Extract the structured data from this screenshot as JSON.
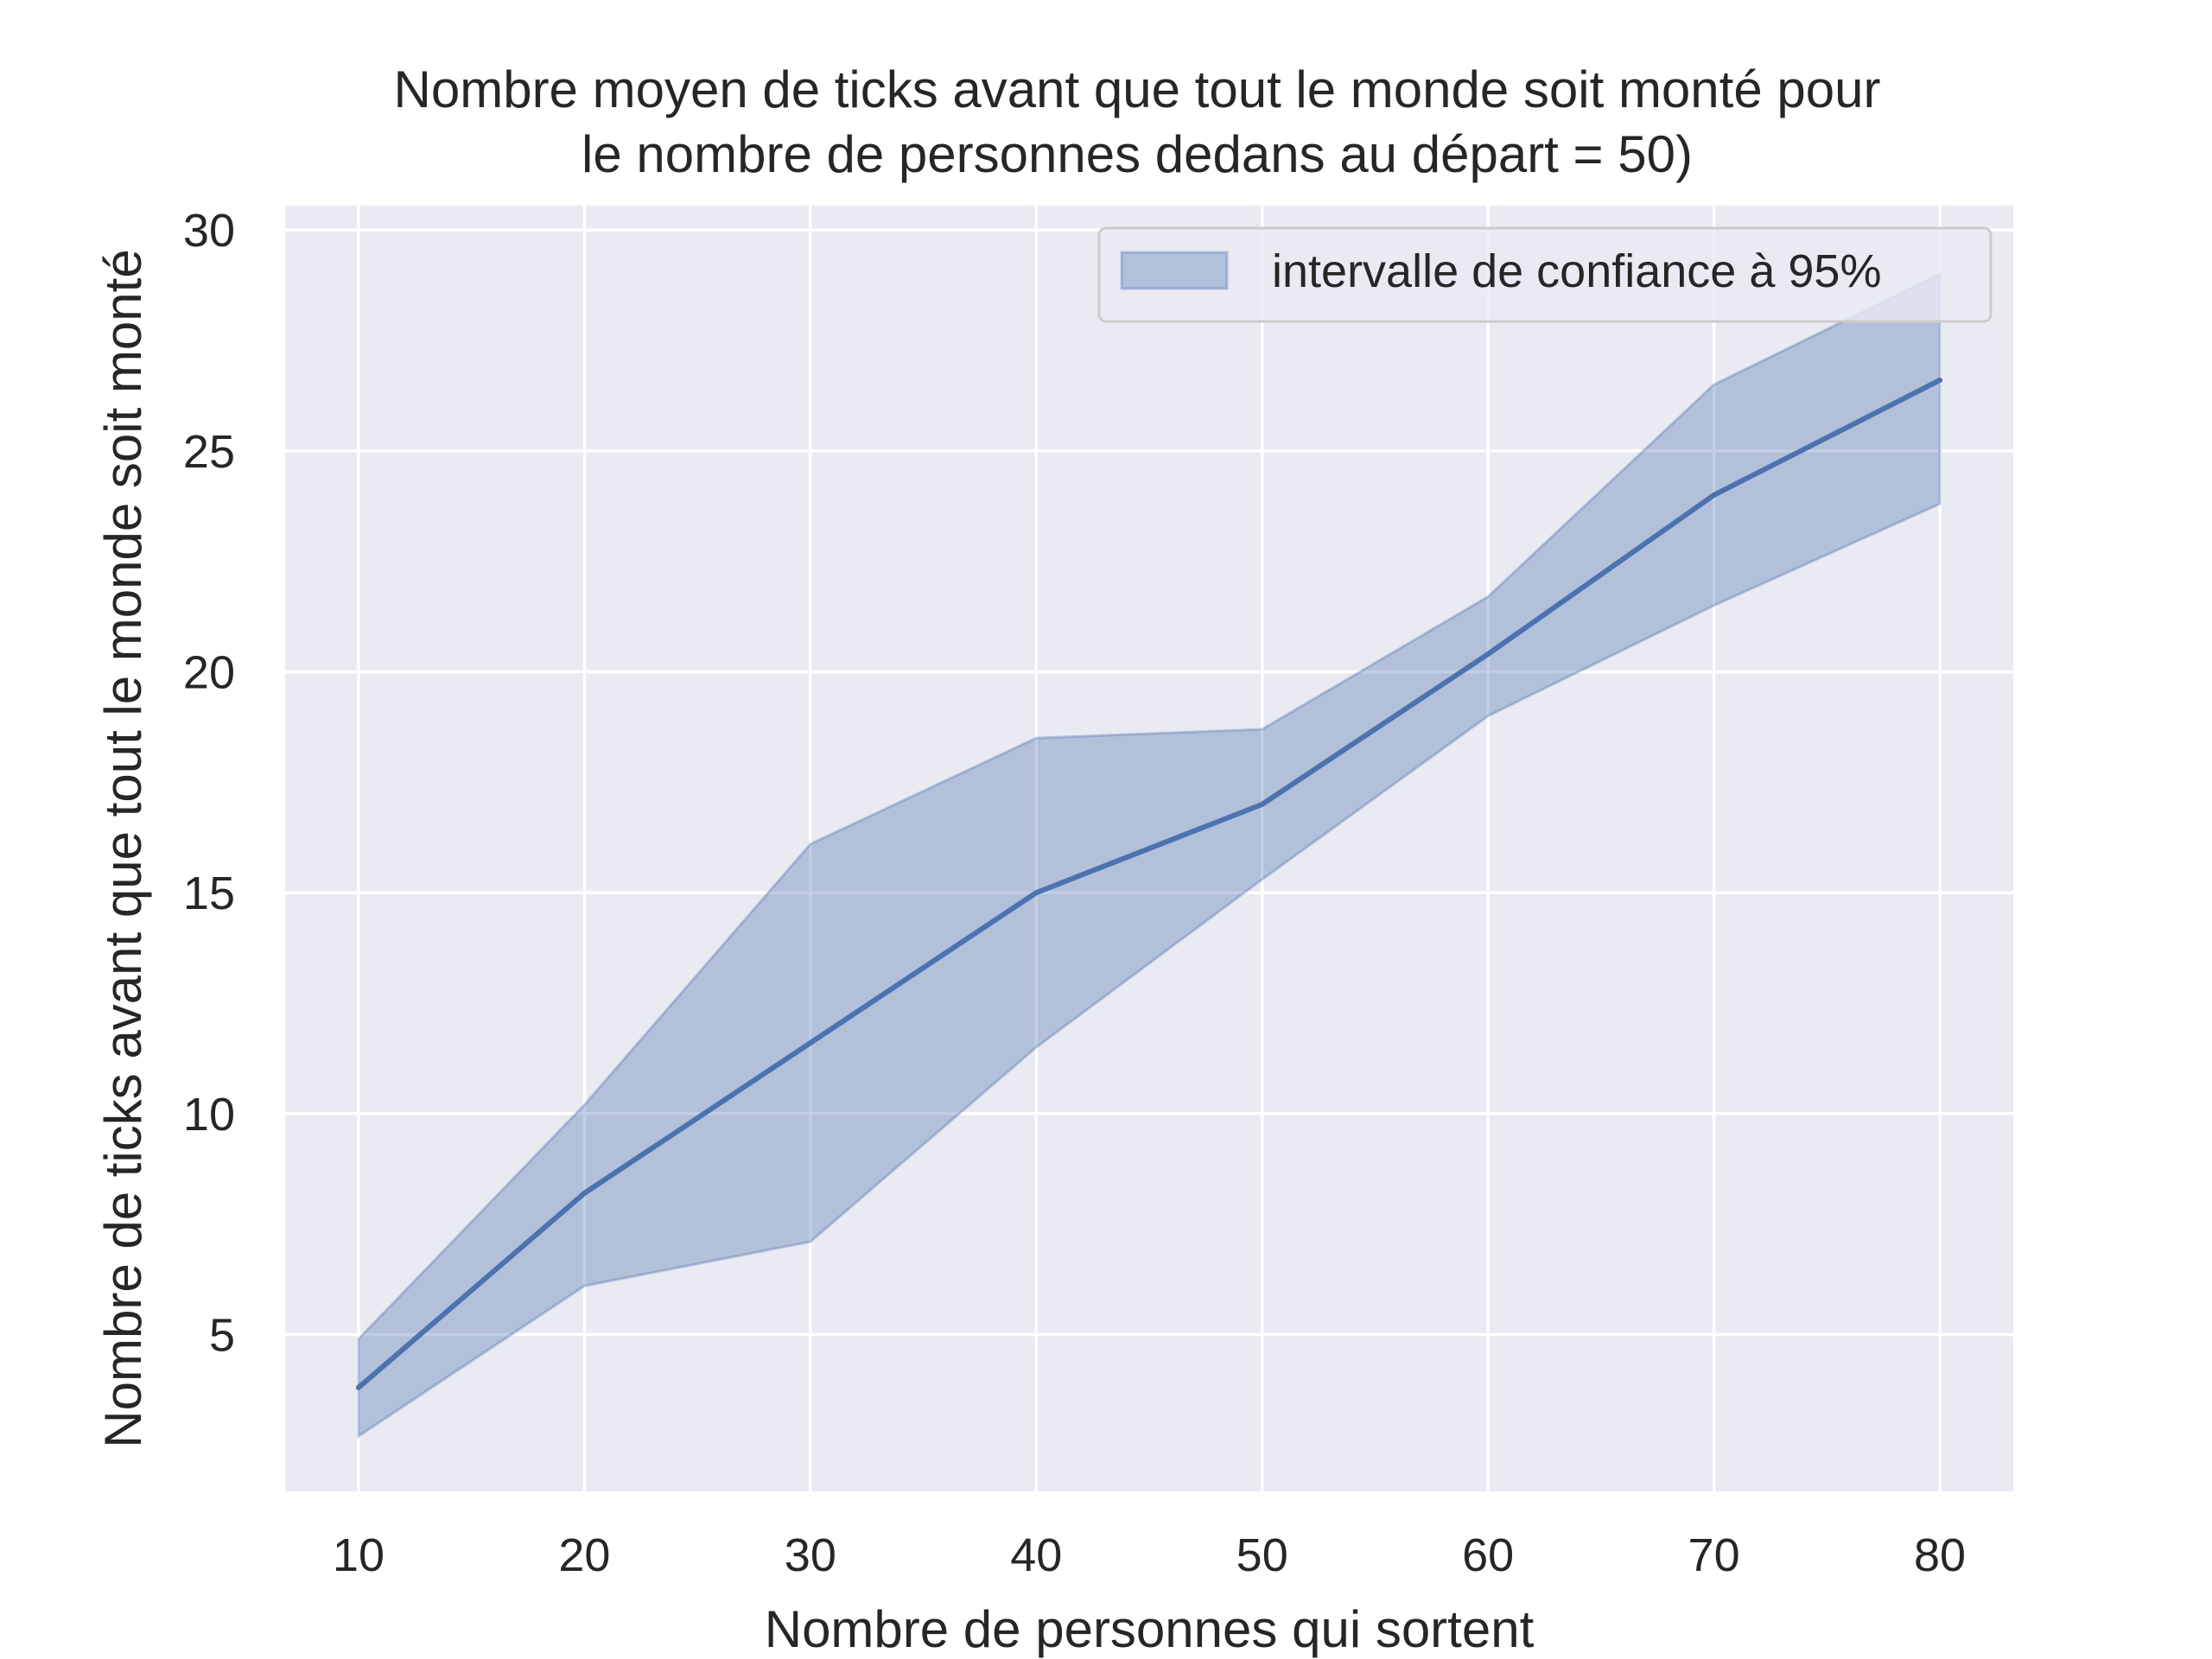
{
  "chart_data": {
    "type": "line",
    "title": "Nombre moyen de ticks avant que tout le monde soit monté pour\nle nombre de personnes dedans au départ = 50)",
    "title_lines": [
      "Nombre moyen de ticks avant que tout le monde soit monté pour",
      "le nombre de personnes dedans au départ = 50)"
    ],
    "xlabel": "Nombre de personnes qui sortent",
    "ylabel": "Nombre de ticks avant que tout le monde soit monté",
    "x": [
      10,
      20,
      30,
      40,
      50,
      60,
      70,
      80
    ],
    "series": [
      {
        "values": [
          3.8,
          8.2,
          11.6,
          15.0,
          17.0,
          20.4,
          24.0,
          26.6
        ],
        "color": "#4c72b0"
      }
    ],
    "ci_band": {
      "name": "intervalle de confiance à 95%",
      "lower": [
        2.7,
        6.1,
        7.1,
        11.5,
        15.3,
        19.0,
        21.5,
        23.8
      ],
      "upper": [
        4.9,
        10.2,
        16.1,
        18.5,
        18.7,
        21.7,
        26.5,
        29.0
      ],
      "color": "#4c72b0",
      "alpha": 0.35
    },
    "xlim": [
      6.75,
      83.25
    ],
    "ylim": [
      1.45,
      30.55
    ],
    "xticks": [
      10,
      20,
      30,
      40,
      50,
      60,
      70,
      80
    ],
    "yticks": [
      5,
      10,
      15,
      20,
      25,
      30
    ],
    "grid": true,
    "legend_position": "top-right",
    "background_color": "#eaeaf2",
    "grid_color": "#ffffff"
  }
}
